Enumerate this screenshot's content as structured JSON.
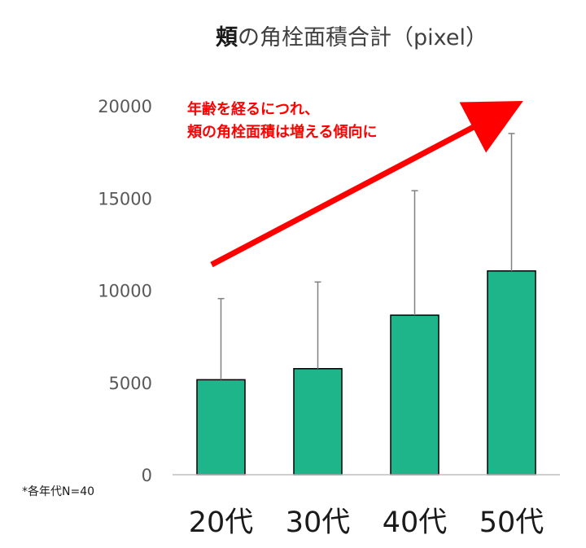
{
  "chart_data": {
    "type": "bar",
    "title_bold": "頬",
    "title_rest": "の角栓面積合計（pixel）",
    "categories": [
      "20代",
      "30代",
      "40代",
      "50代"
    ],
    "values": [
      5150,
      5750,
      8650,
      11050
    ],
    "error_upper": [
      9550,
      10450,
      15400,
      18500
    ],
    "ylim": [
      0,
      20000
    ],
    "yticks": [
      "0",
      "5000",
      "10000",
      "15000",
      "20000"
    ],
    "ytick_values": [
      0,
      5000,
      10000,
      15000,
      20000
    ],
    "grid": false,
    "bar_color": "#1fb58b",
    "error_bar_color": "#808080",
    "axis_color": "#bfbfbf"
  },
  "annotation": {
    "line1": "年齢を経るにつれ、",
    "line2": "頬の角栓面積は増える傾向に",
    "color": "#ff0000"
  },
  "footnote": "*各年代N=40"
}
